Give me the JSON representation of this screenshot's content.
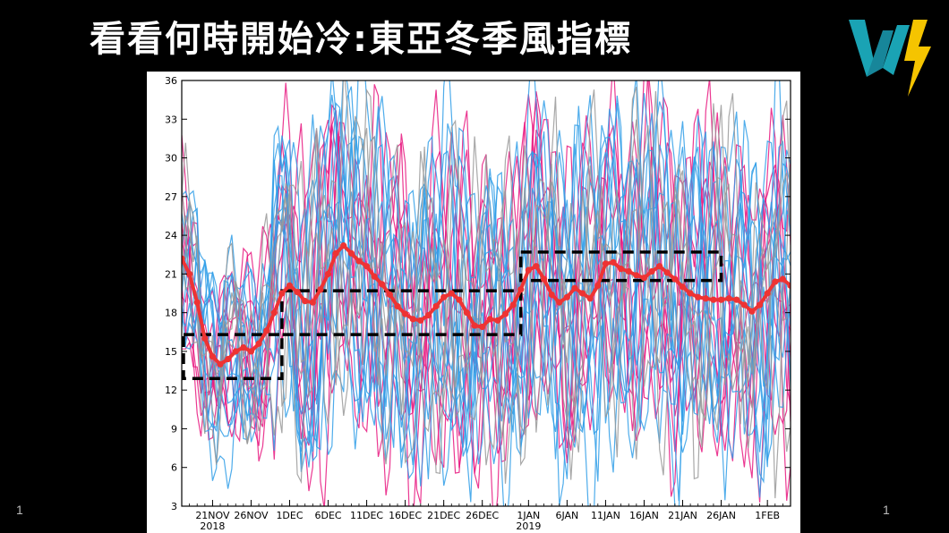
{
  "slide": {
    "title": "看看何時開始冷:東亞冬季風指標",
    "page_left": "1",
    "page_right": "1"
  },
  "logo": {
    "icon": "w-lightning-logo-icon",
    "teal": "#1aa3b4",
    "yellow": "#f5c400"
  },
  "chart_data": {
    "type": "line",
    "title": "",
    "xlabel": "",
    "ylabel": "",
    "ylim": [
      3,
      36
    ],
    "yticks": [
      3,
      6,
      9,
      12,
      15,
      18,
      21,
      24,
      27,
      30,
      33,
      36
    ],
    "x_start": "2018-11-17",
    "x_end": "2019-02-04",
    "xticks": [
      {
        "date": "2018-11-21",
        "label": "21NOV",
        "sub": "2018"
      },
      {
        "date": "2018-11-26",
        "label": "26NOV",
        "sub": ""
      },
      {
        "date": "2018-12-01",
        "label": "1DEC",
        "sub": ""
      },
      {
        "date": "2018-12-06",
        "label": "6DEC",
        "sub": ""
      },
      {
        "date": "2018-12-11",
        "label": "11DEC",
        "sub": ""
      },
      {
        "date": "2018-12-16",
        "label": "16DEC",
        "sub": ""
      },
      {
        "date": "2018-12-21",
        "label": "21DEC",
        "sub": ""
      },
      {
        "date": "2018-12-26",
        "label": "26DEC",
        "sub": ""
      },
      {
        "date": "2019-01-01",
        "label": "1JAN",
        "sub": "2019"
      },
      {
        "date": "2019-01-06",
        "label": "6JAN",
        "sub": ""
      },
      {
        "date": "2019-01-11",
        "label": "11JAN",
        "sub": ""
      },
      {
        "date": "2019-01-16",
        "label": "16JAN",
        "sub": ""
      },
      {
        "date": "2019-01-21",
        "label": "21JAN",
        "sub": ""
      },
      {
        "date": "2019-01-26",
        "label": "26JAN",
        "sub": ""
      },
      {
        "date": "2019-02-01",
        "label": "1FEB",
        "sub": ""
      }
    ],
    "grid": false,
    "series": [
      {
        "color": "#ee3333",
        "style": "thick-dotted",
        "points": [
          [
            "2018-11-17",
            22.2
          ],
          [
            "2018-11-18",
            21.0
          ],
          [
            "2018-11-19",
            18.8
          ],
          [
            "2018-11-20",
            16.0
          ],
          [
            "2018-11-21",
            14.6
          ],
          [
            "2018-11-22",
            14.0
          ],
          [
            "2018-11-23",
            14.4
          ],
          [
            "2018-11-24",
            15.0
          ],
          [
            "2018-11-25",
            15.3
          ],
          [
            "2018-11-26",
            15.0
          ],
          [
            "2018-11-27",
            15.6
          ],
          [
            "2018-11-28",
            16.6
          ],
          [
            "2018-11-29",
            18.0
          ],
          [
            "2018-11-30",
            19.5
          ],
          [
            "2018-12-01",
            20.1
          ],
          [
            "2018-12-02",
            19.6
          ],
          [
            "2018-12-03",
            18.9
          ],
          [
            "2018-12-04",
            18.8
          ],
          [
            "2018-12-05",
            19.8
          ],
          [
            "2018-12-06",
            21.0
          ],
          [
            "2018-12-07",
            22.6
          ],
          [
            "2018-12-08",
            23.2
          ],
          [
            "2018-12-09",
            22.6
          ],
          [
            "2018-12-10",
            22.0
          ],
          [
            "2018-12-11",
            21.6
          ],
          [
            "2018-12-12",
            20.8
          ],
          [
            "2018-12-13",
            20.2
          ],
          [
            "2018-12-14",
            19.4
          ],
          [
            "2018-12-15",
            18.5
          ],
          [
            "2018-12-16",
            17.9
          ],
          [
            "2018-12-17",
            17.5
          ],
          [
            "2018-12-18",
            17.4
          ],
          [
            "2018-12-19",
            17.8
          ],
          [
            "2018-12-20",
            18.5
          ],
          [
            "2018-12-21",
            19.2
          ],
          [
            "2018-12-22",
            19.5
          ],
          [
            "2018-12-23",
            19.0
          ],
          [
            "2018-12-24",
            18.0
          ],
          [
            "2018-12-25",
            17.0
          ],
          [
            "2018-12-26",
            16.9
          ],
          [
            "2018-12-27",
            17.5
          ],
          [
            "2018-12-28",
            17.4
          ],
          [
            "2018-12-29",
            17.9
          ],
          [
            "2018-12-30",
            18.6
          ],
          [
            "2018-12-31",
            19.8
          ],
          [
            "2019-01-01",
            21.3
          ],
          [
            "2019-01-02",
            21.6
          ],
          [
            "2019-01-03",
            20.6
          ],
          [
            "2019-01-04",
            19.4
          ],
          [
            "2019-01-05",
            18.8
          ],
          [
            "2019-01-06",
            19.2
          ],
          [
            "2019-01-07",
            19.9
          ],
          [
            "2019-01-08",
            19.5
          ],
          [
            "2019-01-09",
            19.1
          ],
          [
            "2019-01-10",
            20.1
          ],
          [
            "2019-01-11",
            21.8
          ],
          [
            "2019-01-12",
            21.9
          ],
          [
            "2019-01-13",
            21.4
          ],
          [
            "2019-01-14",
            21.2
          ],
          [
            "2019-01-15",
            20.9
          ],
          [
            "2019-01-16",
            20.7
          ],
          [
            "2019-01-17",
            21.2
          ],
          [
            "2019-01-18",
            21.6
          ],
          [
            "2019-01-19",
            21.1
          ],
          [
            "2019-01-20",
            20.6
          ],
          [
            "2019-01-21",
            20.0
          ],
          [
            "2019-01-22",
            19.5
          ],
          [
            "2019-01-23",
            19.2
          ],
          [
            "2019-01-24",
            19.1
          ],
          [
            "2019-01-25",
            19.0
          ],
          [
            "2019-01-26",
            19.0
          ],
          [
            "2019-01-27",
            19.1
          ],
          [
            "2019-01-28",
            19.0
          ],
          [
            "2019-01-29",
            18.6
          ],
          [
            "2019-01-30",
            18.1
          ],
          [
            "2019-01-31",
            18.6
          ],
          [
            "2019-02-01",
            19.5
          ],
          [
            "2019-02-02",
            20.4
          ],
          [
            "2019-02-03",
            20.6
          ],
          [
            "2019-02-04",
            20.1
          ]
        ]
      }
    ],
    "ensemble_members": [
      {
        "color": "#e8167f",
        "count": 9
      },
      {
        "color": "#2f9ee8",
        "count": 12
      },
      {
        "color": "#999999",
        "count": 5
      }
    ],
    "highlight_boxes": [
      {
        "x0": "2018-11-17",
        "x1": "2018-11-30",
        "y0": 12.9,
        "y1": 16.3
      },
      {
        "x0": "2018-11-30",
        "x1": "2018-12-31",
        "y0": 16.3,
        "y1": 19.7
      },
      {
        "x0": "2018-12-31",
        "x1": "2019-01-26",
        "y0": 20.5,
        "y1": 22.7
      }
    ]
  }
}
